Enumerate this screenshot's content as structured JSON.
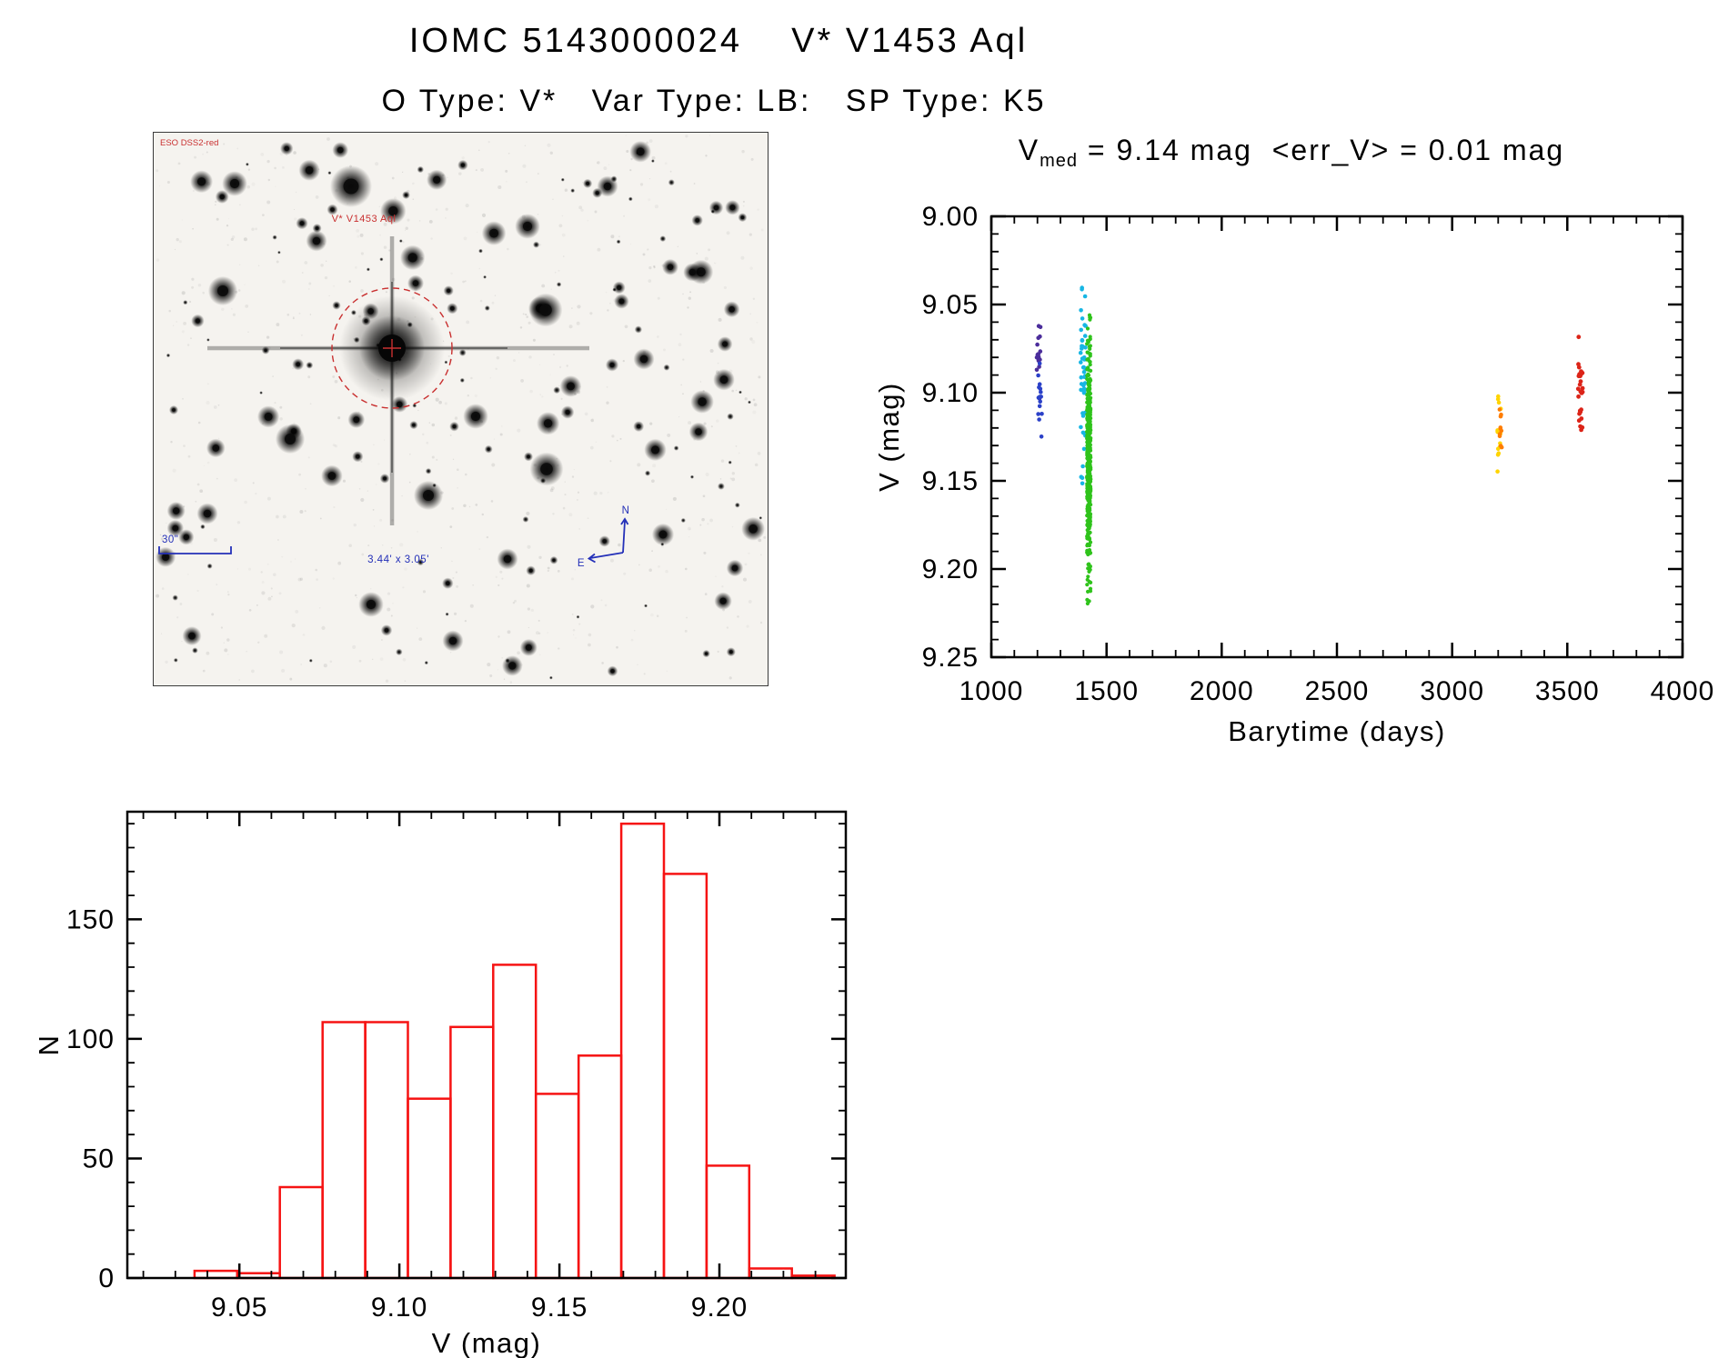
{
  "header": {
    "title": "IOMC 5143000024    V* V1453 Aql",
    "subtitle": "O Type: V*   Var Type: LB:   SP Type: K5"
  },
  "finding_chart": {
    "survey_label": "ESO DSS2-red",
    "target_label": "V* V1453 Aql",
    "scale_label": "30\"",
    "fov_label": "3.44' x 3.05'",
    "compass_north": "N",
    "compass_east": "E",
    "annotation_color": "#c93030",
    "caption_color": "#2430b8"
  },
  "chart_data": [
    {
      "id": "lightcurve",
      "type": "scatter",
      "title_prefix": "V",
      "title_sub": "med",
      "title_rest": " = 9.14 mag  <err_V> = 0.01 mag",
      "v_med_mag": 9.14,
      "err_v_mag": 0.01,
      "xlabel": "Barytime (days)",
      "ylabel": "V (mag)",
      "xlim": [
        1000,
        4000
      ],
      "ylim_top_to_bottom": [
        9.0,
        9.25
      ],
      "xticks": [
        1000,
        1500,
        2000,
        2500,
        3000,
        3500,
        4000
      ],
      "xtick_labels": [
        "1000",
        "1500",
        "2000",
        "2500",
        "3000",
        "3500",
        "4000"
      ],
      "yticks": [
        9.0,
        9.05,
        9.1,
        9.15,
        9.2,
        9.25
      ],
      "ytick_labels": [
        "9.00",
        "9.05",
        "9.10",
        "9.15",
        "9.20",
        "9.25"
      ],
      "legend": "none",
      "grid": false,
      "clusters": [
        {
          "name": "epoch1-dark-violet",
          "x": 1205,
          "x_spread": 9,
          "mag_mean": 9.082,
          "mag_sigma": 0.013,
          "mag_min": 9.062,
          "mag_max": 9.105,
          "count": 16,
          "color": "#4b2d9b",
          "size": 2.3
        },
        {
          "name": "epoch1-blue",
          "x": 1212,
          "x_spread": 9,
          "mag_mean": 9.105,
          "mag_sigma": 0.013,
          "mag_min": 9.082,
          "mag_max": 9.135,
          "count": 15,
          "color": "#2b41c8",
          "size": 2.3
        },
        {
          "name": "epoch2-cyan",
          "x": 1398,
          "x_spread": 11,
          "mag_mean": 9.09,
          "mag_sigma": 0.03,
          "mag_min": 9.038,
          "mag_max": 9.168,
          "count": 48,
          "color": "#17b6e4",
          "size": 2.3
        },
        {
          "name": "epoch2-green",
          "x": 1423,
          "x_spread": 8,
          "mag_mean": 9.138,
          "mag_sigma": 0.033,
          "mag_min": 9.056,
          "mag_max": 9.223,
          "count": 430,
          "color": "#2fc31b",
          "size": 2.1
        },
        {
          "name": "epoch3-yellow",
          "x": 3205,
          "x_spread": 8,
          "mag_mean": 9.127,
          "mag_sigma": 0.017,
          "mag_min": 9.098,
          "mag_max": 9.158,
          "count": 15,
          "color": "#ffd400",
          "size": 2.3
        },
        {
          "name": "epoch3-orange",
          "x": 3211,
          "x_spread": 5,
          "mag_mean": 9.12,
          "mag_sigma": 0.007,
          "mag_min": 9.106,
          "mag_max": 9.133,
          "count": 10,
          "color": "#ff7d00",
          "size": 2.3
        },
        {
          "name": "epoch4-red",
          "x": 3557,
          "x_spread": 10,
          "mag_mean": 9.101,
          "mag_sigma": 0.016,
          "mag_min": 9.064,
          "mag_max": 9.132,
          "count": 26,
          "color": "#dc2418",
          "size": 2.4
        }
      ]
    },
    {
      "id": "histogram",
      "type": "bar",
      "xlabel": "V (mag)",
      "ylabel": "N",
      "xlim": [
        9.015,
        9.2395
      ],
      "ylim": [
        0,
        195
      ],
      "xticks": [
        9.05,
        9.1,
        9.15,
        9.2
      ],
      "xtick_labels": [
        "9.05",
        "9.10",
        "9.15",
        "9.20"
      ],
      "yticks": [
        0,
        50,
        100,
        150
      ],
      "ytick_labels": [
        "0",
        "50",
        "100",
        "150"
      ],
      "bin_start": 9.036,
      "bin_width": 0.013333,
      "counts": [
        3,
        2,
        38,
        107,
        107,
        75,
        105,
        131,
        77,
        93,
        190,
        169,
        47,
        4,
        1
      ],
      "bar_color": "#f61313",
      "grid": false
    }
  ]
}
